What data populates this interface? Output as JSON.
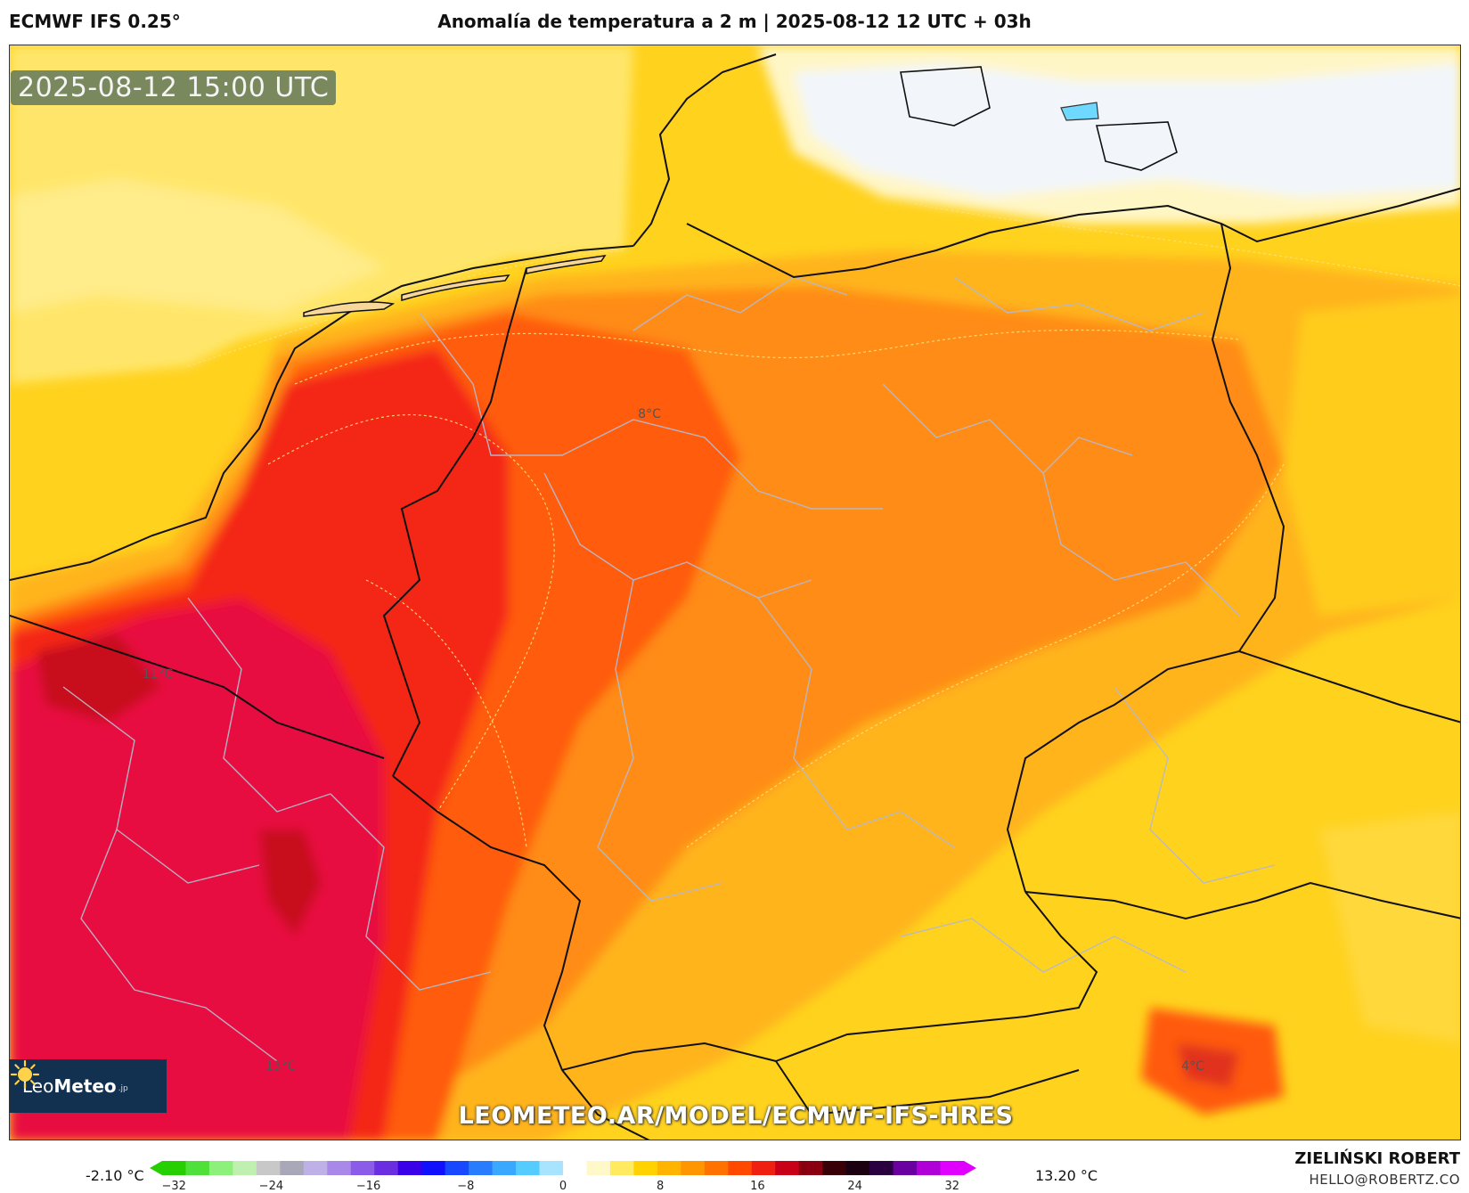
{
  "header": {
    "model": "ECMWF IFS 0.25°",
    "title": "Anomalía de temperatura a 2 m | 2025-08-12 12 UTC + 03h"
  },
  "map": {
    "timestamp": "2025-08-12 15:00 UTC",
    "labels": [
      {
        "text": "8°C"
      },
      {
        "text": "11°C"
      },
      {
        "text": "13°C"
      },
      {
        "text": "4°C"
      }
    ],
    "watermark": "LEOMETEO.AR/MODEL/ECMWF-IFS-HRES",
    "logo": {
      "brand_light": "Leo",
      "brand_bold": "Meteo",
      "brand_sub": ".jp"
    }
  },
  "colorbar": {
    "min_label": "-2.10 °C",
    "max_label": "13.20 °C",
    "ticks": [
      "−32",
      "−24",
      "−16",
      "−8",
      "0",
      "8",
      "16",
      "24",
      "32"
    ],
    "colors": [
      "#26d000",
      "#4fe03a",
      "#8cf07a",
      "#c0f0b0",
      "#c8c8c8",
      "#a8a8b8",
      "#c0b0e8",
      "#a888e8",
      "#8a5ce8",
      "#6a2ee0",
      "#3a00e8",
      "#1010ff",
      "#1848ff",
      "#2a7cff",
      "#3aa8ff",
      "#54ccff",
      "#a8e4ff",
      "#ffffff",
      "#fff8c8",
      "#ffea60",
      "#ffd200",
      "#ffb400",
      "#ff9600",
      "#ff7200",
      "#ff4800",
      "#f02010",
      "#c80018",
      "#8a0010",
      "#3a0008",
      "#1a0010",
      "#2a0040",
      "#6a00a0",
      "#b000d8",
      "#e000ff"
    ]
  },
  "author": {
    "name": "ZIELIŃSKI ROBERT",
    "email": "HELLO@ROBERTZ.CO"
  }
}
